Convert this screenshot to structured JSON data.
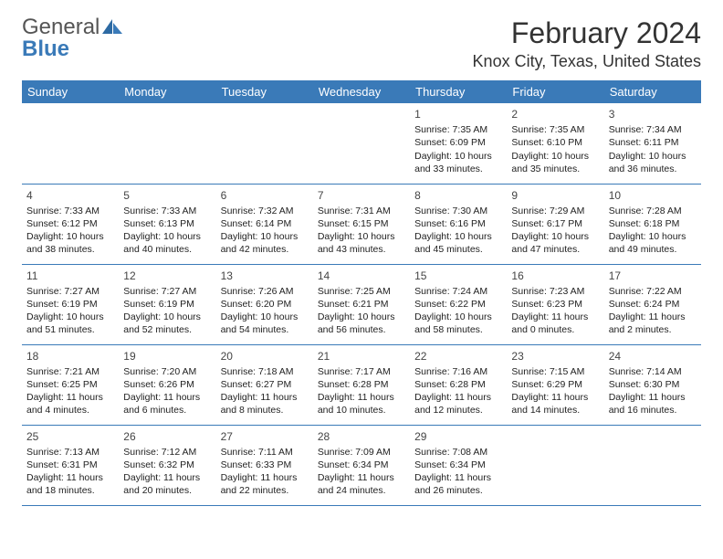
{
  "logo": {
    "line1": "General",
    "line2": "Blue"
  },
  "title": {
    "month_year": "February 2024",
    "location": "Knox City, Texas, United States"
  },
  "colors": {
    "header_bg": "#3a7ab8",
    "header_fg": "#ffffff",
    "rule": "#3a7ab8",
    "text": "#333333"
  },
  "weekdays": [
    "Sunday",
    "Monday",
    "Tuesday",
    "Wednesday",
    "Thursday",
    "Friday",
    "Saturday"
  ],
  "weeks": [
    [
      null,
      null,
      null,
      null,
      {
        "n": "1",
        "sr": "Sunrise: 7:35 AM",
        "ss": "Sunset: 6:09 PM",
        "dl": "Daylight: 10 hours and 33 minutes."
      },
      {
        "n": "2",
        "sr": "Sunrise: 7:35 AM",
        "ss": "Sunset: 6:10 PM",
        "dl": "Daylight: 10 hours and 35 minutes."
      },
      {
        "n": "3",
        "sr": "Sunrise: 7:34 AM",
        "ss": "Sunset: 6:11 PM",
        "dl": "Daylight: 10 hours and 36 minutes."
      }
    ],
    [
      {
        "n": "4",
        "sr": "Sunrise: 7:33 AM",
        "ss": "Sunset: 6:12 PM",
        "dl": "Daylight: 10 hours and 38 minutes."
      },
      {
        "n": "5",
        "sr": "Sunrise: 7:33 AM",
        "ss": "Sunset: 6:13 PM",
        "dl": "Daylight: 10 hours and 40 minutes."
      },
      {
        "n": "6",
        "sr": "Sunrise: 7:32 AM",
        "ss": "Sunset: 6:14 PM",
        "dl": "Daylight: 10 hours and 42 minutes."
      },
      {
        "n": "7",
        "sr": "Sunrise: 7:31 AM",
        "ss": "Sunset: 6:15 PM",
        "dl": "Daylight: 10 hours and 43 minutes."
      },
      {
        "n": "8",
        "sr": "Sunrise: 7:30 AM",
        "ss": "Sunset: 6:16 PM",
        "dl": "Daylight: 10 hours and 45 minutes."
      },
      {
        "n": "9",
        "sr": "Sunrise: 7:29 AM",
        "ss": "Sunset: 6:17 PM",
        "dl": "Daylight: 10 hours and 47 minutes."
      },
      {
        "n": "10",
        "sr": "Sunrise: 7:28 AM",
        "ss": "Sunset: 6:18 PM",
        "dl": "Daylight: 10 hours and 49 minutes."
      }
    ],
    [
      {
        "n": "11",
        "sr": "Sunrise: 7:27 AM",
        "ss": "Sunset: 6:19 PM",
        "dl": "Daylight: 10 hours and 51 minutes."
      },
      {
        "n": "12",
        "sr": "Sunrise: 7:27 AM",
        "ss": "Sunset: 6:19 PM",
        "dl": "Daylight: 10 hours and 52 minutes."
      },
      {
        "n": "13",
        "sr": "Sunrise: 7:26 AM",
        "ss": "Sunset: 6:20 PM",
        "dl": "Daylight: 10 hours and 54 minutes."
      },
      {
        "n": "14",
        "sr": "Sunrise: 7:25 AM",
        "ss": "Sunset: 6:21 PM",
        "dl": "Daylight: 10 hours and 56 minutes."
      },
      {
        "n": "15",
        "sr": "Sunrise: 7:24 AM",
        "ss": "Sunset: 6:22 PM",
        "dl": "Daylight: 10 hours and 58 minutes."
      },
      {
        "n": "16",
        "sr": "Sunrise: 7:23 AM",
        "ss": "Sunset: 6:23 PM",
        "dl": "Daylight: 11 hours and 0 minutes."
      },
      {
        "n": "17",
        "sr": "Sunrise: 7:22 AM",
        "ss": "Sunset: 6:24 PM",
        "dl": "Daylight: 11 hours and 2 minutes."
      }
    ],
    [
      {
        "n": "18",
        "sr": "Sunrise: 7:21 AM",
        "ss": "Sunset: 6:25 PM",
        "dl": "Daylight: 11 hours and 4 minutes."
      },
      {
        "n": "19",
        "sr": "Sunrise: 7:20 AM",
        "ss": "Sunset: 6:26 PM",
        "dl": "Daylight: 11 hours and 6 minutes."
      },
      {
        "n": "20",
        "sr": "Sunrise: 7:18 AM",
        "ss": "Sunset: 6:27 PM",
        "dl": "Daylight: 11 hours and 8 minutes."
      },
      {
        "n": "21",
        "sr": "Sunrise: 7:17 AM",
        "ss": "Sunset: 6:28 PM",
        "dl": "Daylight: 11 hours and 10 minutes."
      },
      {
        "n": "22",
        "sr": "Sunrise: 7:16 AM",
        "ss": "Sunset: 6:28 PM",
        "dl": "Daylight: 11 hours and 12 minutes."
      },
      {
        "n": "23",
        "sr": "Sunrise: 7:15 AM",
        "ss": "Sunset: 6:29 PM",
        "dl": "Daylight: 11 hours and 14 minutes."
      },
      {
        "n": "24",
        "sr": "Sunrise: 7:14 AM",
        "ss": "Sunset: 6:30 PM",
        "dl": "Daylight: 11 hours and 16 minutes."
      }
    ],
    [
      {
        "n": "25",
        "sr": "Sunrise: 7:13 AM",
        "ss": "Sunset: 6:31 PM",
        "dl": "Daylight: 11 hours and 18 minutes."
      },
      {
        "n": "26",
        "sr": "Sunrise: 7:12 AM",
        "ss": "Sunset: 6:32 PM",
        "dl": "Daylight: 11 hours and 20 minutes."
      },
      {
        "n": "27",
        "sr": "Sunrise: 7:11 AM",
        "ss": "Sunset: 6:33 PM",
        "dl": "Daylight: 11 hours and 22 minutes."
      },
      {
        "n": "28",
        "sr": "Sunrise: 7:09 AM",
        "ss": "Sunset: 6:34 PM",
        "dl": "Daylight: 11 hours and 24 minutes."
      },
      {
        "n": "29",
        "sr": "Sunrise: 7:08 AM",
        "ss": "Sunset: 6:34 PM",
        "dl": "Daylight: 11 hours and 26 minutes."
      },
      null,
      null
    ]
  ]
}
